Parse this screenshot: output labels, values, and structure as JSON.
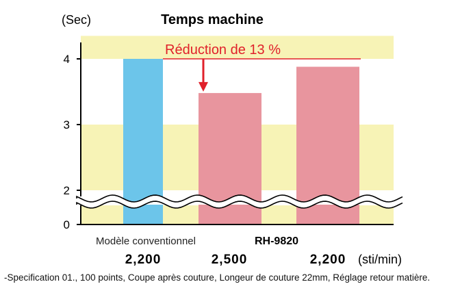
{
  "chart_data": {
    "type": "bar",
    "title": "Temps machine",
    "ylabel": "(Sec)",
    "ylim": [
      0,
      4.4
    ],
    "y_ticks": [
      "0",
      "2",
      "3",
      "4"
    ],
    "axis_break": "between 0 and 2",
    "grid": false,
    "bands": [
      [
        2,
        3
      ],
      [
        4,
        4.35
      ]
    ],
    "categories": [
      "2,200",
      "2,500",
      "2,200"
    ],
    "x_unit": "(sti/min)",
    "values": [
      4.0,
      3.48,
      3.88
    ],
    "colors": [
      "#6cc5ea",
      "#e8959e",
      "#e8959e"
    ],
    "band_color": "#f7f3b6",
    "groups": [
      {
        "label": "Modèle conventionnel",
        "bars": [
          0
        ]
      },
      {
        "label": "RH-9820",
        "bars": [
          1,
          2
        ]
      }
    ],
    "annotation": {
      "text": "Réduction de 13 %",
      "color": "#e0202a"
    }
  },
  "footnote": "-Specification 01., 100 points, Coupe après couture, Longeur de couture 22mm, Réglage retour matière."
}
